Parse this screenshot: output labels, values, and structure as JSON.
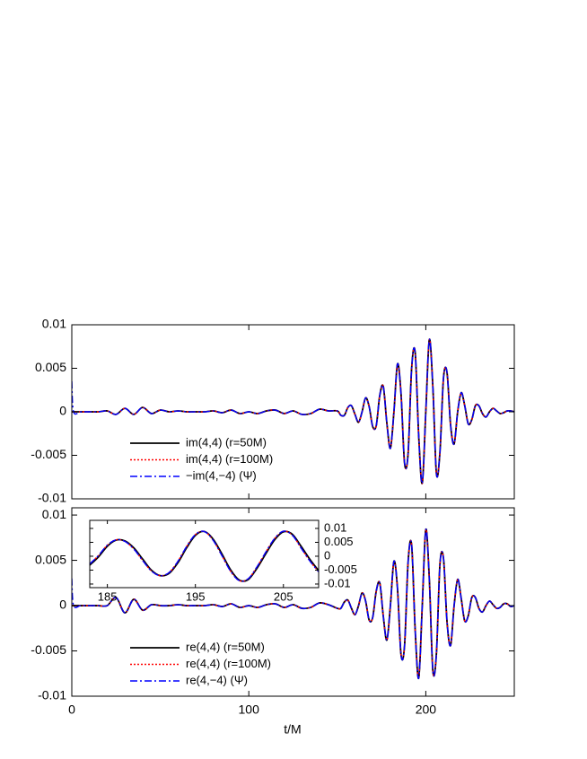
{
  "chart_data": [
    {
      "type": "line",
      "xlim": [
        0,
        250
      ],
      "ylim": [
        -0.01,
        0.01
      ],
      "xticks": [
        0,
        100,
        200
      ],
      "yticks": [
        0.01,
        0.005,
        0,
        -0.005,
        -0.01
      ],
      "xtick_labels": false,
      "x": [
        0,
        1,
        5,
        10,
        15,
        20,
        25,
        30,
        35,
        40,
        45,
        50,
        55,
        60,
        65,
        70,
        75,
        80,
        85,
        90,
        95,
        100,
        105,
        110,
        115,
        120,
        125,
        130,
        135,
        140,
        145,
        150,
        152,
        154,
        156,
        158,
        160,
        162,
        164,
        166,
        168,
        170,
        172,
        174,
        176,
        178,
        180,
        182,
        184,
        186,
        188,
        190,
        192,
        194,
        196,
        198,
        200,
        202,
        204,
        206,
        208,
        210,
        212,
        214,
        216,
        218,
        220,
        222,
        224,
        226,
        228,
        230,
        232,
        234,
        236,
        238,
        240,
        242,
        244,
        246,
        248,
        250
      ],
      "series": [
        {
          "name": "im(4,4) (r=50M)",
          "color": "#000000",
          "style": "solid",
          "values": [
            0,
            0,
            0,
            0,
            0,
            0.0001,
            -0.0003,
            0.0004,
            -0.0003,
            0.0005,
            -0.0002,
            0.0002,
            0,
            0.0001,
            0,
            0,
            0,
            0.0001,
            -0.0001,
            0.0002,
            -0.0002,
            0,
            -0.0002,
            0.0001,
            0.0002,
            -0.0002,
            0.0001,
            -0.0003,
            -0.0002,
            0.0003,
            0.0001,
            0.0001,
            -0.0004,
            -0.0004,
            0.0005,
            0.0007,
            -0.0003,
            -0.0012,
            0,
            0.0016,
            0.0006,
            -0.0017,
            -0.0016,
            0.0019,
            0.0029,
            -0.0013,
            -0.0042,
            0,
            0.0055,
            0.0021,
            -0.0059,
            -0.0048,
            0.005,
            0.0068,
            -0.0028,
            -0.0082,
            0,
            0.0083,
            0.0028,
            -0.0071,
            -0.0046,
            0.0039,
            0.0045,
            -0.0015,
            -0.0037,
            0,
            0.0022,
            0.0007,
            -0.0014,
            -0.0009,
            0.0007,
            0.0007,
            -0.0002,
            -0.0006,
            0,
            0.0004,
            0.0001,
            -0.0002,
            -0.0001,
            0.0001,
            0.0001,
            0
          ]
        },
        {
          "name": "im(4,4) (r=100M)",
          "color": "#ff0000",
          "style": "dotted",
          "values": [
            0,
            0,
            0,
            0,
            0,
            0.0001,
            -0.0003,
            0.0004,
            -0.0003,
            0.0005,
            -0.0002,
            0.0002,
            0,
            0.0001,
            0,
            0,
            0,
            0.0001,
            -0.0001,
            0.0002,
            -0.0002,
            0,
            -0.0002,
            0.0001,
            0.0002,
            -0.0002,
            0.0001,
            -0.0003,
            -0.0002,
            0.0003,
            0.0001,
            0.0001,
            -0.0004,
            -0.0004,
            0.0005,
            0.0007,
            -0.0003,
            -0.0012,
            0,
            0.0016,
            0.0006,
            -0.0017,
            -0.0016,
            0.0019,
            0.0029,
            -0.0013,
            -0.0042,
            0,
            0.0055,
            0.0021,
            -0.0059,
            -0.0048,
            0.005,
            0.0068,
            -0.0028,
            -0.0082,
            0,
            0.0083,
            0.0028,
            -0.0071,
            -0.0046,
            0.0039,
            0.0045,
            -0.0015,
            -0.0037,
            0,
            0.0022,
            0.0007,
            -0.0014,
            -0.0009,
            0.0007,
            0.0007,
            -0.0002,
            -0.0006,
            0,
            0.0004,
            0.0001,
            -0.0002,
            -0.0001,
            0.0001,
            0.0001,
            0
          ]
        },
        {
          "name": "−im(4,−4) (Ψ)",
          "color": "#0000ff",
          "style": "dashdot",
          "values": [
            0.0035,
            0,
            0,
            0,
            0,
            0.0001,
            -0.0003,
            0.0004,
            -0.0003,
            0.0005,
            -0.0002,
            0.0002,
            0,
            0.0001,
            0,
            0,
            0,
            0.0001,
            -0.0001,
            0.0002,
            -0.0002,
            0,
            -0.0002,
            0.0001,
            0.0002,
            -0.0002,
            0.0001,
            -0.0003,
            -0.0002,
            0.0003,
            0.0001,
            0.0001,
            -0.0004,
            -0.0004,
            0.0005,
            0.0007,
            -0.0003,
            -0.0012,
            0,
            0.0016,
            0.0006,
            -0.0017,
            -0.0016,
            0.0019,
            0.0029,
            -0.0013,
            -0.0042,
            0,
            0.0055,
            0.0021,
            -0.0059,
            -0.0048,
            0.005,
            0.0068,
            -0.0028,
            -0.0082,
            0,
            0.0083,
            0.0028,
            -0.0071,
            -0.0046,
            0.0039,
            0.0045,
            -0.0015,
            -0.0037,
            0,
            0.0022,
            0.0007,
            -0.0014,
            -0.0009,
            0.0007,
            0.0007,
            -0.0002,
            -0.0006,
            0,
            0.0004,
            0.0001,
            -0.0002,
            -0.0001,
            0.0001,
            0.0001,
            0
          ]
        }
      ]
    },
    {
      "type": "line",
      "x_label": "t/M",
      "xlim": [
        0,
        250
      ],
      "ylim": [
        -0.01,
        0.0108
      ],
      "xticks": [
        0,
        100,
        200
      ],
      "yticks": [
        0.01,
        0.005,
        0,
        -0.005,
        -0.01
      ],
      "xtick_labels": true,
      "x": [
        0,
        1,
        5,
        10,
        15,
        20,
        25,
        30,
        35,
        40,
        45,
        50,
        55,
        60,
        65,
        70,
        75,
        80,
        85,
        90,
        95,
        100,
        105,
        110,
        115,
        120,
        125,
        130,
        135,
        140,
        145,
        150,
        152,
        154,
        156,
        158,
        160,
        162,
        164,
        166,
        168,
        170,
        172,
        174,
        176,
        178,
        180,
        182,
        184,
        186,
        188,
        190,
        192,
        194,
        196,
        198,
        200,
        202,
        204,
        206,
        208,
        210,
        212,
        214,
        216,
        218,
        220,
        222,
        224,
        226,
        228,
        230,
        232,
        234,
        236,
        238,
        240,
        242,
        244,
        246,
        248,
        250
      ],
      "series": [
        {
          "name": "re(4,4) (r=50M)",
          "color": "#000000",
          "style": "solid",
          "values": [
            0,
            0,
            0,
            0,
            0,
            0,
            0.0009,
            -0.0008,
            0.0007,
            -0.0005,
            0.0001,
            0,
            0,
            0.0001,
            0,
            0,
            0,
            0.0001,
            -0.0001,
            0.0002,
            -0.0002,
            0,
            -0.0002,
            0.0001,
            0.0002,
            -0.0002,
            0.0001,
            -0.0003,
            -0.0002,
            0.0003,
            0.0001,
            -0.0003,
            -0.0003,
            0.0004,
            0.0006,
            -0.0003,
            -0.001,
            0,
            0.0014,
            0.0005,
            -0.0016,
            -0.0013,
            0.0016,
            0.0025,
            -0.0012,
            -0.0038,
            0,
            0.0049,
            0.0019,
            -0.0054,
            -0.0044,
            0.0048,
            0.0067,
            -0.0027,
            -0.008,
            0,
            0.0084,
            0.0029,
            -0.0072,
            -0.0053,
            0.0046,
            0.0052,
            -0.0018,
            -0.0044,
            0,
            0.0029,
            0.0008,
            -0.0017,
            -0.0011,
            0.0009,
            0.0009,
            -0.0003,
            -0.0007,
            0,
            0.0005,
            0.0001,
            -0.0003,
            -0.0002,
            0.0002,
            0.0002,
            -0.0001,
            0
          ]
        },
        {
          "name": "re(4,4) (r=100M)",
          "color": "#ff0000",
          "style": "dotted",
          "values": [
            0,
            0,
            0,
            0,
            0,
            0,
            0.0009,
            -0.0008,
            0.0007,
            -0.0005,
            0.0001,
            0,
            0,
            0.0001,
            0,
            0,
            0,
            0.0001,
            -0.0001,
            0.0002,
            -0.0002,
            0,
            -0.0002,
            0.0001,
            0.0002,
            -0.0002,
            0.0001,
            -0.0003,
            -0.0002,
            0.0003,
            0.0001,
            -0.0003,
            -0.0003,
            0.0004,
            0.0006,
            -0.0003,
            -0.001,
            0,
            0.0014,
            0.0005,
            -0.0016,
            -0.0013,
            0.0016,
            0.0025,
            -0.0012,
            -0.0038,
            0,
            0.0049,
            0.0019,
            -0.0054,
            -0.0044,
            0.0048,
            0.0067,
            -0.0027,
            -0.008,
            0,
            0.0084,
            0.0029,
            -0.0072,
            -0.0053,
            0.0046,
            0.0052,
            -0.0018,
            -0.0044,
            0,
            0.0029,
            0.0008,
            -0.0017,
            -0.0011,
            0.0009,
            0.0009,
            -0.0003,
            -0.0007,
            0,
            0.0005,
            0.0001,
            -0.0003,
            -0.0002,
            0.0002,
            0.0002,
            -0.0001,
            0
          ]
        },
        {
          "name": "re(4,−4) (Ψ)",
          "color": "#0000ff",
          "style": "dashdot",
          "values": [
            0.003,
            0,
            0,
            0,
            0,
            0,
            0.0009,
            -0.0008,
            0.0007,
            -0.0005,
            0.0001,
            0,
            0,
            0.0001,
            0,
            0,
            0,
            0.0001,
            -0.0001,
            0.0002,
            -0.0002,
            0,
            -0.0002,
            0.0001,
            0.0002,
            -0.0002,
            0.0001,
            -0.0003,
            -0.0002,
            0.0003,
            0.0001,
            -0.0003,
            -0.0003,
            0.0004,
            0.0006,
            -0.0003,
            -0.001,
            0,
            0.0014,
            0.0005,
            -0.0016,
            -0.0013,
            0.0016,
            0.0025,
            -0.0012,
            -0.0038,
            0,
            0.0049,
            0.0019,
            -0.0054,
            -0.0044,
            0.0048,
            0.0067,
            -0.0027,
            -0.008,
            0,
            0.0084,
            0.0029,
            -0.0072,
            -0.0053,
            0.0046,
            0.0052,
            -0.0018,
            -0.0044,
            0,
            0.0029,
            0.0008,
            -0.0017,
            -0.0011,
            0.0009,
            0.0009,
            -0.0003,
            -0.0007,
            0,
            0.0005,
            0.0001,
            -0.0003,
            -0.0002,
            0.0002,
            0.0002,
            -0.0001,
            0
          ]
        }
      ]
    },
    {
      "type": "line",
      "xlim": [
        183,
        209
      ],
      "ylim": [
        -0.0113,
        0.0129
      ],
      "xticks": [
        185,
        195,
        205
      ],
      "yticks": [
        0.01,
        0.005,
        0,
        -0.005,
        -0.01
      ],
      "xtick_labels": true,
      "x": [
        183,
        184,
        185,
        186,
        187,
        188,
        189,
        190,
        191,
        192,
        193,
        194,
        195,
        196,
        197,
        198,
        199,
        200,
        201,
        202,
        203,
        204,
        205,
        206,
        207,
        208,
        209
      ],
      "series": [
        {
          "color": "#000000",
          "style": "solid",
          "values": [
            -0.0032,
            -0.0002,
            0.0036,
            0.0058,
            0.0055,
            0.003,
            -0.001,
            -0.005,
            -0.007,
            -0.0062,
            -0.0024,
            0.003,
            0.0075,
            0.0089,
            0.0062,
            0.0009,
            -0.0049,
            -0.0086,
            -0.0084,
            -0.0043,
            0.0009,
            0.0059,
            0.0088,
            0.0079,
            0.0036,
            -0.0011,
            -0.0052
          ]
        },
        {
          "color": "#ff0000",
          "style": "dotted",
          "values": [
            -0.0028,
            0.0003,
            0.004,
            0.0059,
            0.0053,
            0.0026,
            -0.0015,
            -0.0053,
            -0.007,
            -0.0059,
            -0.0019,
            0.0035,
            0.0078,
            0.0089,
            0.0058,
            0.0003,
            -0.0054,
            -0.0088,
            -0.0081,
            -0.0038,
            0.0015,
            0.0064,
            0.009,
            0.0076,
            0.003,
            -0.0017,
            -0.0056
          ]
        },
        {
          "color": "#0000ff",
          "style": "dashdot",
          "values": [
            -0.0028,
            0.0003,
            0.004,
            0.0059,
            0.0053,
            0.0026,
            -0.0015,
            -0.0053,
            -0.007,
            -0.0059,
            -0.0019,
            0.0035,
            0.0078,
            0.0089,
            0.0058,
            0.0003,
            -0.0054,
            -0.0088,
            -0.0081,
            -0.0038,
            0.0015,
            0.0064,
            0.009,
            0.0076,
            0.003,
            -0.0017,
            -0.0056
          ]
        }
      ]
    }
  ]
}
